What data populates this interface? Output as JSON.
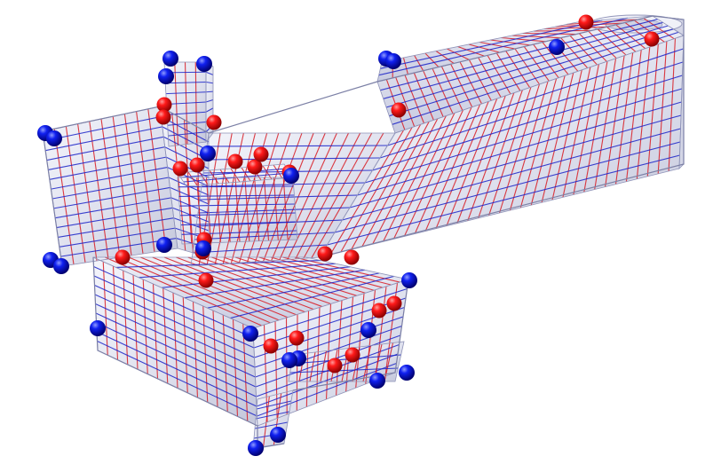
{
  "render": {
    "subject": "",
    "colors": {
      "background": "#ffffff",
      "surface": "#e6e8f4",
      "surface_shade": "#c9ccdf",
      "surface_highlight": "#ffffff",
      "grid_red": "#d81a22",
      "grid_blue": "#1a22c8",
      "singularity_red": "#e00000",
      "singularity_blue": "#0010e0"
    },
    "legend": {}
  }
}
